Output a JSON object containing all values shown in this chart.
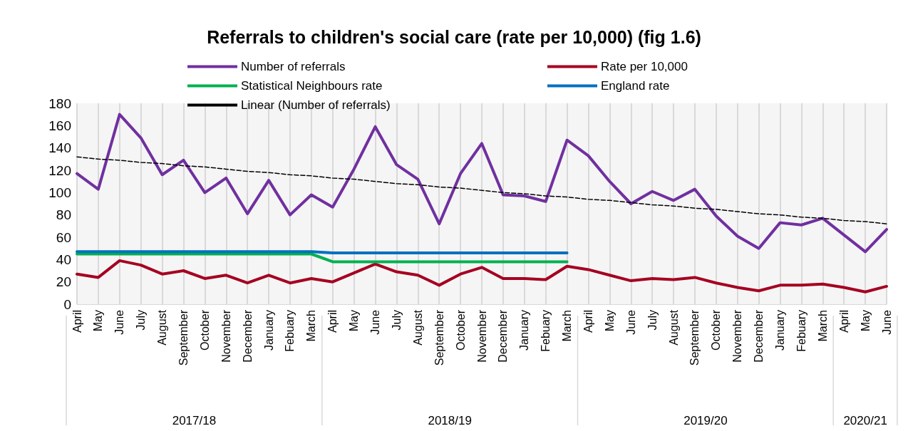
{
  "chart_data": {
    "type": "line",
    "title": "Referrals to children's social care (rate per 10,000) (fig 1.6)",
    "categories": [
      "April",
      "May",
      "June",
      "July",
      "August",
      "September",
      "October",
      "November",
      "December",
      "January",
      "Febuary",
      "March",
      "April",
      "May",
      "June",
      "July",
      "August",
      "September",
      "October",
      "November",
      "December",
      "January",
      "Febuary",
      "March",
      "April",
      "May",
      "June",
      "July",
      "August",
      "September",
      "October",
      "November",
      "December",
      "January",
      "Febuary",
      "March",
      "April",
      "May",
      "June"
    ],
    "series": [
      {
        "name": "Number of referrals",
        "color": "#7030a0",
        "values": [
          117,
          103,
          170,
          149,
          116,
          129,
          100,
          113,
          81,
          111,
          80,
          98,
          87,
          121,
          159,
          125,
          112,
          72,
          117,
          144,
          98,
          97,
          92,
          147,
          133,
          110,
          90,
          101,
          93,
          103,
          79,
          61,
          50,
          73,
          71,
          77,
          62,
          47,
          67
        ]
      },
      {
        "name": "Rate per 10,000",
        "color": "#a50021",
        "values": [
          27,
          24,
          39,
          35,
          27,
          30,
          23,
          26,
          19,
          26,
          19,
          23,
          20,
          28,
          36,
          29,
          26,
          17,
          27,
          33,
          23,
          23,
          22,
          34,
          31,
          26,
          21,
          23,
          22,
          24,
          19,
          15,
          12,
          17,
          17,
          18,
          15,
          11,
          16
        ]
      },
      {
        "name": "Statistical Neighbours rate",
        "color": "#00b050",
        "values": [
          45,
          45,
          45,
          45,
          45,
          45,
          45,
          45,
          45,
          45,
          45,
          45,
          38,
          38,
          38,
          38,
          38,
          38,
          38,
          38,
          38,
          38,
          38,
          38,
          null,
          null,
          null,
          null,
          null,
          null,
          null,
          null,
          null,
          null,
          null,
          null,
          null,
          null,
          null
        ]
      },
      {
        "name": "England rate",
        "color": "#0070c0",
        "values": [
          47,
          47,
          47,
          47,
          47,
          47,
          47,
          47,
          47,
          47,
          47,
          47,
          46,
          46,
          46,
          46,
          46,
          46,
          46,
          46,
          46,
          46,
          46,
          46,
          null,
          null,
          null,
          null,
          null,
          null,
          null,
          null,
          null,
          null,
          null,
          null,
          null,
          null,
          null
        ]
      },
      {
        "name": "Linear (Number of referrals)",
        "color": "#000000",
        "line_style": "dashed",
        "values": [
          132,
          130,
          129,
          127,
          126,
          124,
          123,
          121,
          119,
          118,
          116,
          115,
          113,
          112,
          110,
          108,
          107,
          105,
          104,
          102,
          100,
          99,
          97,
          96,
          94,
          93,
          91,
          89,
          88,
          86,
          85,
          83,
          81,
          80,
          78,
          77,
          75,
          74,
          72
        ]
      }
    ],
    "annotations": [
      "2017/18",
      "2018/19",
      "2019/20",
      "2020/21"
    ],
    "ylim": [
      0,
      180
    ],
    "yticks": [
      0,
      20,
      40,
      60,
      80,
      100,
      120,
      140,
      160,
      180
    ],
    "grid": "x",
    "legend": "top",
    "marker": "none",
    "line_style": "solid"
  }
}
